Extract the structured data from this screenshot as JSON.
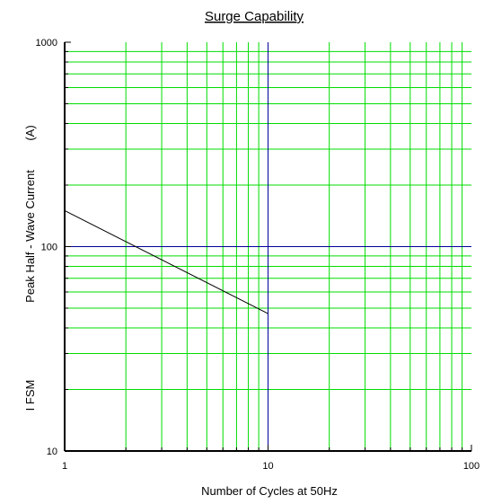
{
  "chart_data": {
    "type": "line",
    "title": "Surge Capability",
    "xlabel": "Number of Cycles at 50Hz",
    "ylabel_parts": [
      "I FSM",
      "Peak Half - Wave Current",
      "(A)"
    ],
    "x_scale": "log",
    "y_scale": "log",
    "xlim": [
      1,
      100
    ],
    "ylim": [
      10,
      1000
    ],
    "x_tick_labels": [
      {
        "value": 1,
        "label": "1"
      },
      {
        "value": 10,
        "label": "10"
      },
      {
        "value": 100,
        "label": "100"
      }
    ],
    "y_tick_labels": [
      {
        "value": 10,
        "label": "10"
      },
      {
        "value": 100,
        "label": "100"
      },
      {
        "value": 1000,
        "label": "1000"
      }
    ],
    "grid": true,
    "reference_lines": [
      {
        "axis": "x",
        "value": 10
      },
      {
        "axis": "y",
        "value": 100
      }
    ],
    "series": [
      {
        "x": [
          1,
          10
        ],
        "y": [
          150,
          47
        ]
      }
    ]
  },
  "colors": {
    "grid": "#00dd00",
    "reference": "#00009c",
    "series": "#000000",
    "axis": "#000000"
  }
}
